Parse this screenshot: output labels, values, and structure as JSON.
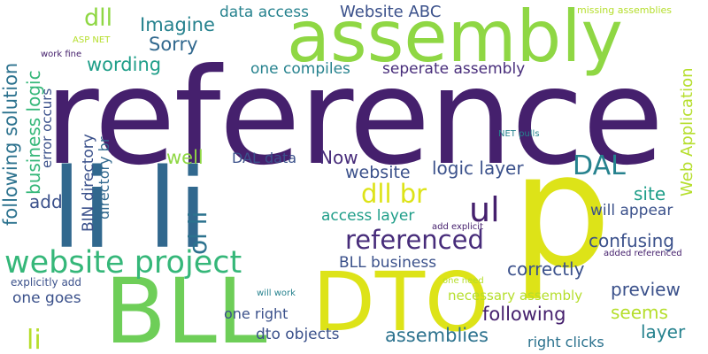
{
  "colors": {
    "background": "#ffffff",
    "dark_purple": "#45206d",
    "purple": "#472c7a",
    "indigo": "#3b518b",
    "blue": "#31688e",
    "teal_blue": "#2c728e",
    "teal": "#26828e",
    "green_teal": "#1f9e89",
    "green": "#35b779",
    "light_green": "#6ece58",
    "lime": "#8fd744",
    "yellow_green": "#b5de2b",
    "yellow": "#dde318"
  },
  "words": {
    "reference": "reference",
    "assembly": "assembly",
    "li_li": "li li",
    "p": "p",
    "BLL": "BLL",
    "DTO": "DTO",
    "website_project": "website project",
    "referenced": "referenced",
    "ul": "ul",
    "DAL": "DAL",
    "dll_br": "dll br",
    "ol_li": "ol li",
    "li": "li",
    "dll": "dll",
    "Imagine": "Imagine",
    "Sorry": "Sorry",
    "wording": "wording",
    "data_access": "data access",
    "Website_ABC": "Website ABC",
    "missing_assemblies": "missing assemblies",
    "ASP_NET": "ASP NET",
    "work_fine": "work fine",
    "one_compiles": "one compiles",
    "seperate_assembly": "seperate assembly",
    "following_solution": "following solution",
    "error_occurs": "error occurs",
    "business_logic": "business logic",
    "BIN_directory": "BIN directory",
    "directory_br": "directory br",
    "Web_Application": "Web Application",
    "NET_pulls": "NET pulls",
    "add_explicit": "add explicit",
    "well": "well",
    "DAL_data": "DAL data",
    "Now": "Now",
    "website": "website",
    "logic_layer": "logic layer",
    "add": "add",
    "access_layer": "access layer",
    "site": "site",
    "will_appear": "will appear",
    "confusing": "confusing",
    "added_referenced": "added referenced",
    "BLL_business": "BLL business",
    "correctly": "correctly",
    "preview": "preview",
    "explicitly_add": "explicitly add",
    "one_need": "one need",
    "necessary_assembly": "necessary assembly",
    "will_work": "will work",
    "one_goes": "one goes",
    "following": "following",
    "seems": "seems",
    "one_right": "one right",
    "layer": "layer",
    "dto_objects": "dto objects",
    "assemblies": "assemblies",
    "right_clicks": "right clicks"
  }
}
